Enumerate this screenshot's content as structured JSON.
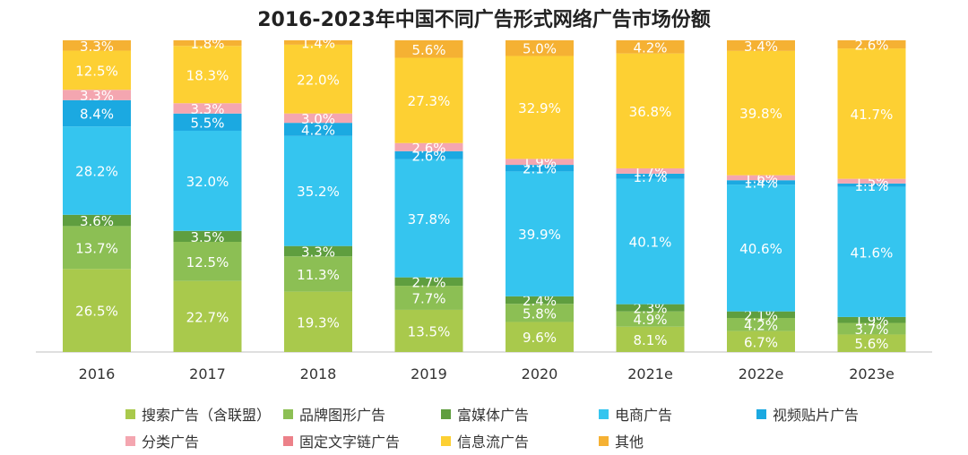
{
  "chart_data": {
    "type": "bar",
    "stacked": true,
    "title": "2016-2023年中国不同广告形式网络广告市场份额",
    "categories": [
      "2016",
      "2017",
      "2018",
      "2019",
      "2020",
      "2021e",
      "2022e",
      "2023e"
    ],
    "ylim": [
      0,
      100
    ],
    "grid": false,
    "legend_position": "bottom",
    "series": [
      {
        "name": "搜索广告（含联盟）",
        "color": "#a9c94c",
        "values": [
          26.5,
          22.7,
          19.3,
          13.5,
          9.6,
          8.1,
          6.7,
          5.6
        ]
      },
      {
        "name": "品牌图形广告",
        "color": "#8cbf54",
        "values": [
          13.7,
          12.5,
          11.3,
          7.7,
          5.8,
          4.9,
          4.2,
          3.7
        ]
      },
      {
        "name": "富媒体广告",
        "color": "#5f9e3f",
        "values": [
          3.6,
          3.5,
          3.3,
          2.7,
          2.4,
          2.3,
          2.1,
          1.9
        ]
      },
      {
        "name": "电商广告",
        "color": "#35c5ef",
        "values": [
          28.2,
          32.0,
          35.2,
          37.8,
          39.9,
          40.1,
          40.6,
          41.6
        ]
      },
      {
        "name": "视频贴片广告",
        "color": "#1ba9e1",
        "values": [
          8.4,
          5.5,
          4.2,
          2.6,
          2.1,
          1.7,
          1.4,
          1.1
        ]
      },
      {
        "name": "分类广告",
        "color": "#f4a6b0",
        "values": [
          3.3,
          3.3,
          3.0,
          2.6,
          1.9,
          1.7,
          1.6,
          1.5
        ]
      },
      {
        "name": "固定文字链广告",
        "color": "#ec8189",
        "values": [
          0,
          0,
          0,
          0,
          0,
          0,
          0,
          0
        ]
      },
      {
        "name": "信息流广告",
        "color": "#fdd033",
        "values": [
          12.5,
          18.3,
          22.0,
          27.3,
          32.9,
          36.8,
          39.8,
          41.7
        ]
      },
      {
        "name": "其他",
        "color": "#f5b133",
        "values": [
          3.3,
          1.8,
          1.4,
          5.6,
          5.0,
          4.2,
          3.4,
          2.6
        ]
      }
    ]
  }
}
